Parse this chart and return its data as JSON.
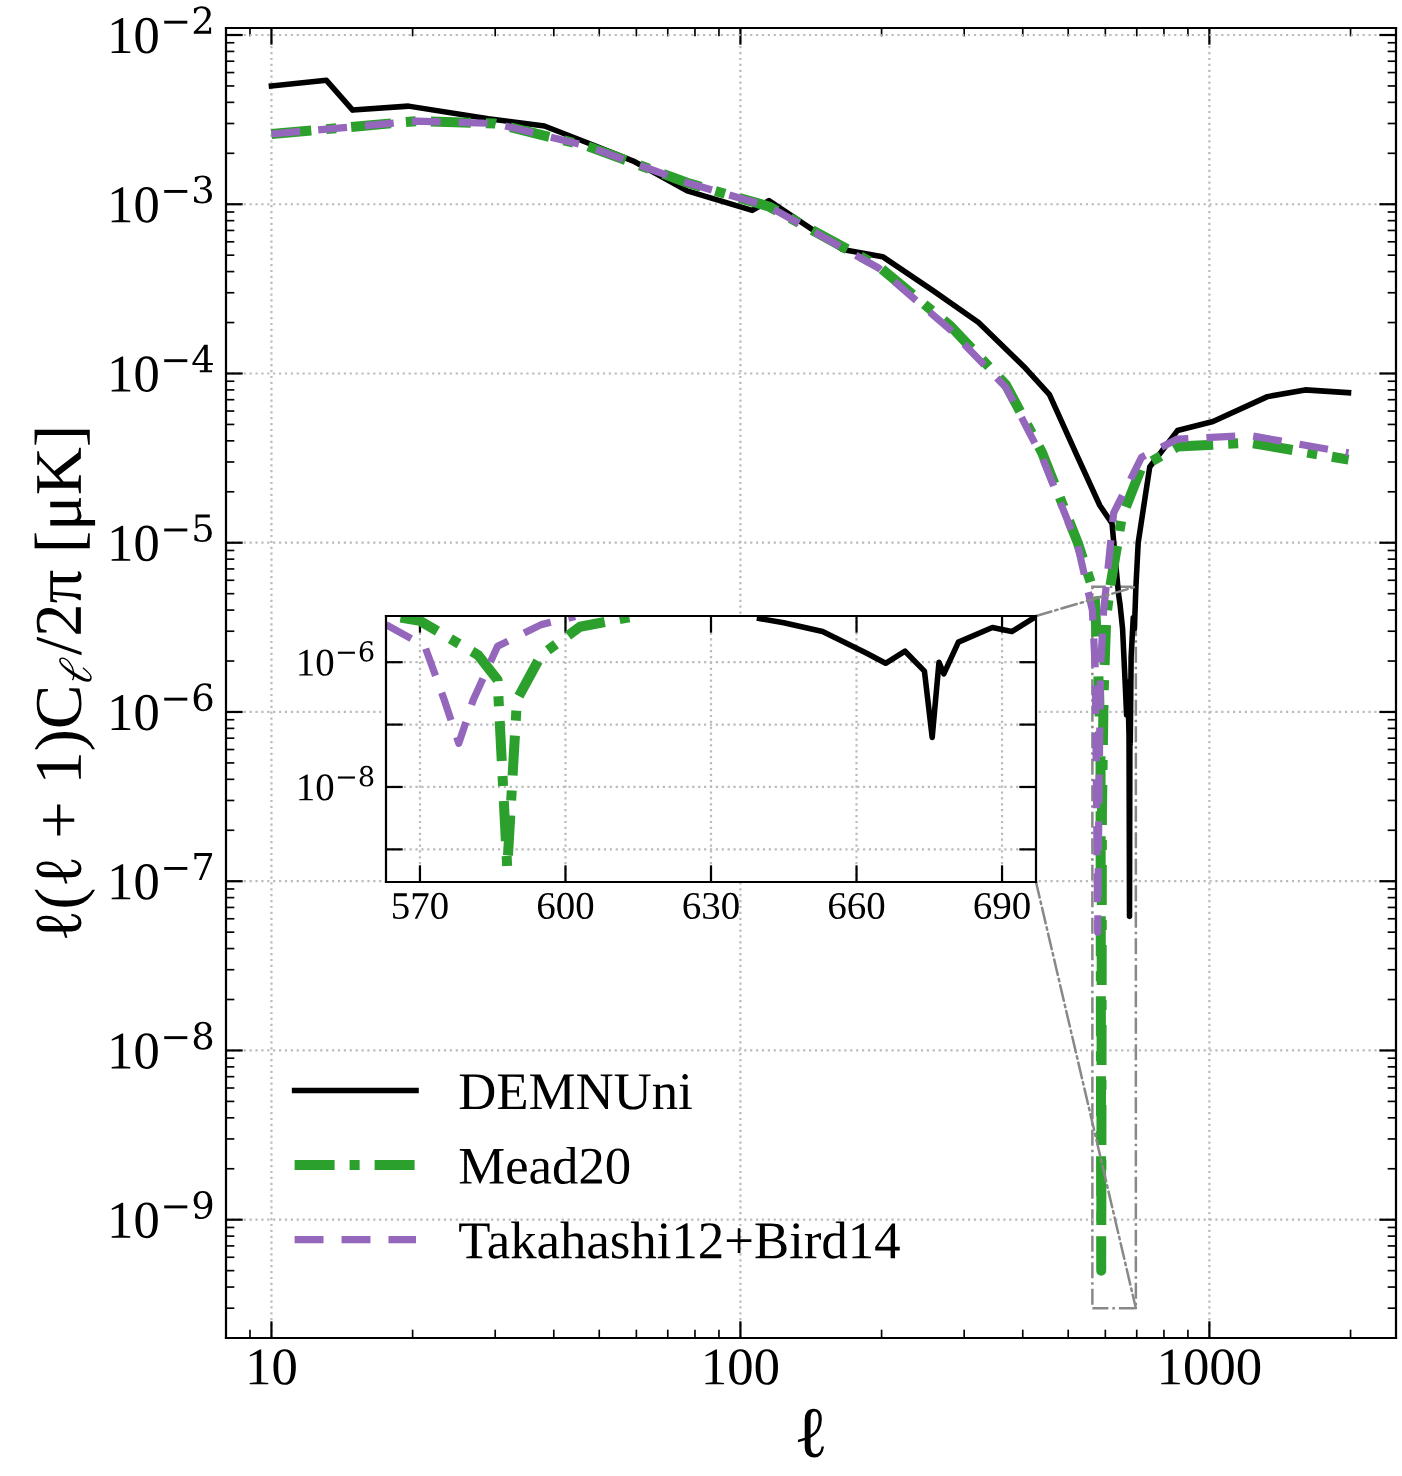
{
  "chart_data": [
    {
      "type": "line",
      "xlabel": "ℓ",
      "ylabel": "ℓ(ℓ + 1)C$_{ℓ}$/2π [μK]",
      "log": "xy",
      "grid": true,
      "legend": "bottom left",
      "xlim": [
        8,
        2500
      ],
      "ylim": [
        2e-10,
        0.011
      ],
      "xticks": [
        10,
        100,
        1000
      ],
      "yticks": [
        {
          "value": 1e-09,
          "label": "10$^{−9}$"
        },
        {
          "value": 1e-08,
          "label": "10$^{−8}$"
        },
        {
          "value": 1e-07,
          "label": "10$^{−7}$"
        },
        {
          "value": 1e-06,
          "label": "10$^{−6}$"
        },
        {
          "value": 1e-05,
          "label": "10$^{−5}$"
        },
        {
          "value": 0.0001,
          "label": "10$^{−4}$"
        },
        {
          "value": 0.001,
          "label": "10$^{−3}$"
        },
        {
          "value": 0.01,
          "label": "10$^{−2}$"
        }
      ],
      "series": [
        {
          "name": "DEMNUni",
          "color": "#000000",
          "line_style": "solid",
          "x": [
            10,
            13.1,
            14.9,
            19.6,
            29,
            38.2,
            47.3,
            59.1,
            77,
            106,
            115,
            165,
            201,
            257,
            322,
            402,
            456,
            524,
            584,
            620,
            640,
            645,
            653,
            662,
            666,
            670,
            674,
            675.6,
            677,
            678,
            681,
            688,
            692,
            697,
            705,
            746,
            855,
            1018,
            1330,
            1600,
            1980
          ],
          "values": [
            0.005,
            0.0054,
            0.0036,
            0.0038,
            0.0032,
            0.0029,
            0.0023,
            0.0018,
            0.0012,
            0.00092,
            0.00105,
            0.00054,
            0.00049,
            0.00031,
            0.0002,
            0.00011,
            7.5e-05,
            3.2e-05,
            1.66e-05,
            1.3e-05,
            5e-06,
            4.3e-06,
            3.1e-06,
            1.4e-06,
            9.6e-07,
            1.5e-06,
            7.2e-07,
            6.2e-08,
            1e-06,
            6.5e-07,
            2.1e-06,
            3.6e-06,
            3.1e-06,
            5.4e-06,
            1e-05,
            2.8e-05,
            4.6e-05,
            5.2e-05,
            7.3e-05,
            8e-05,
            7.7e-05
          ]
        },
        {
          "name": "Mead20",
          "color": "#2ca02c",
          "line_style": "dashdot",
          "x": [
            10,
            20.4,
            30,
            47.3,
            77,
            115,
            197,
            281,
            368,
            440,
            524,
            566,
            570,
            582,
            586,
            588,
            590,
            595,
            603,
            614,
            650,
            717,
            855,
            1220,
            1980
          ],
          "values": [
            0.0026,
            0.0031,
            0.003,
            0.0022,
            0.00134,
            0.00097,
            0.00043,
            0.00019,
            8.6e-05,
            3.4e-05,
            1e-05,
            5.2e-06,
            4.6e-06,
            1.3e-06,
            5.2e-07,
            5e-10,
            2.5e-07,
            1.3e-06,
            3.7e-06,
            5.4e-06,
            1.4e-05,
            2.8e-05,
            3.7e-05,
            3.9e-05,
            3.1e-05
          ]
        },
        {
          "name": "Takahashi12+Bird14",
          "color": "#9467bd",
          "line_style": "dashed",
          "x": [
            10,
            20.4,
            30,
            47.3,
            77,
            115,
            197,
            281,
            368,
            440,
            524,
            563,
            571,
            575,
            578,
            581,
            586,
            595,
            602,
            625,
            717,
            855,
            1220,
            1980
          ],
          "values": [
            0.0026,
            0.0031,
            0.003,
            0.0022,
            0.00134,
            0.00097,
            0.00042,
            0.00018,
            8.3e-05,
            3.2e-05,
            9.6e-06,
            4e-06,
            1.8e-06,
            2.5e-07,
            5e-08,
            2.5e-07,
            1.8e-06,
            4e-06,
            5.4e-06,
            1.5e-05,
            3.2e-05,
            4.1e-05,
            4.3e-05,
            3.4e-05
          ]
        }
      ]
    },
    {
      "type": "line",
      "log": "y",
      "grid": true,
      "xlim": [
        563,
        697
      ],
      "ylim": [
        3e-10,
        5.5e-06
      ],
      "xticks": [
        570,
        600,
        630,
        660,
        690
      ],
      "yticks": [
        {
          "value": 1e-09,
          "label": null
        },
        {
          "value": 1e-08,
          "label": "10$^{−8}$"
        },
        {
          "value": 1e-07,
          "label": null
        },
        {
          "value": 1e-06,
          "label": "10$^{−6}$"
        }
      ],
      "series": [
        {
          "color": "#000000",
          "line_style": "solid",
          "x": [
            640,
            645,
            653,
            662,
            666,
            670,
            674,
            675.6,
            677,
            678,
            681,
            688,
            692,
            697
          ],
          "values": [
            5e-06,
            4.3e-06,
            3.1e-06,
            1.4e-06,
            9.6e-07,
            1.5e-06,
            7.2e-07,
            6.2e-08,
            1e-06,
            6.5e-07,
            2.1e-06,
            3.6e-06,
            3.1e-06,
            5.4e-06
          ]
        },
        {
          "color": "#2ca02c",
          "line_style": "dashdot",
          "x": [
            566,
            570,
            582,
            586,
            588,
            590,
            595,
            603,
            614
          ],
          "values": [
            5.2e-06,
            4.6e-06,
            1.3e-06,
            5.2e-07,
            5e-10,
            2.5e-07,
            1.3e-06,
            3.7e-06,
            5.4e-06
          ]
        },
        {
          "color": "#9467bd",
          "line_style": "dashed",
          "x": [
            563,
            571,
            575,
            578,
            581,
            586,
            595,
            602
          ],
          "values": [
            4e-06,
            1.8e-06,
            2.5e-07,
            5e-08,
            2.5e-07,
            1.8e-06,
            4e-06,
            5.4e-06
          ]
        }
      ]
    }
  ]
}
